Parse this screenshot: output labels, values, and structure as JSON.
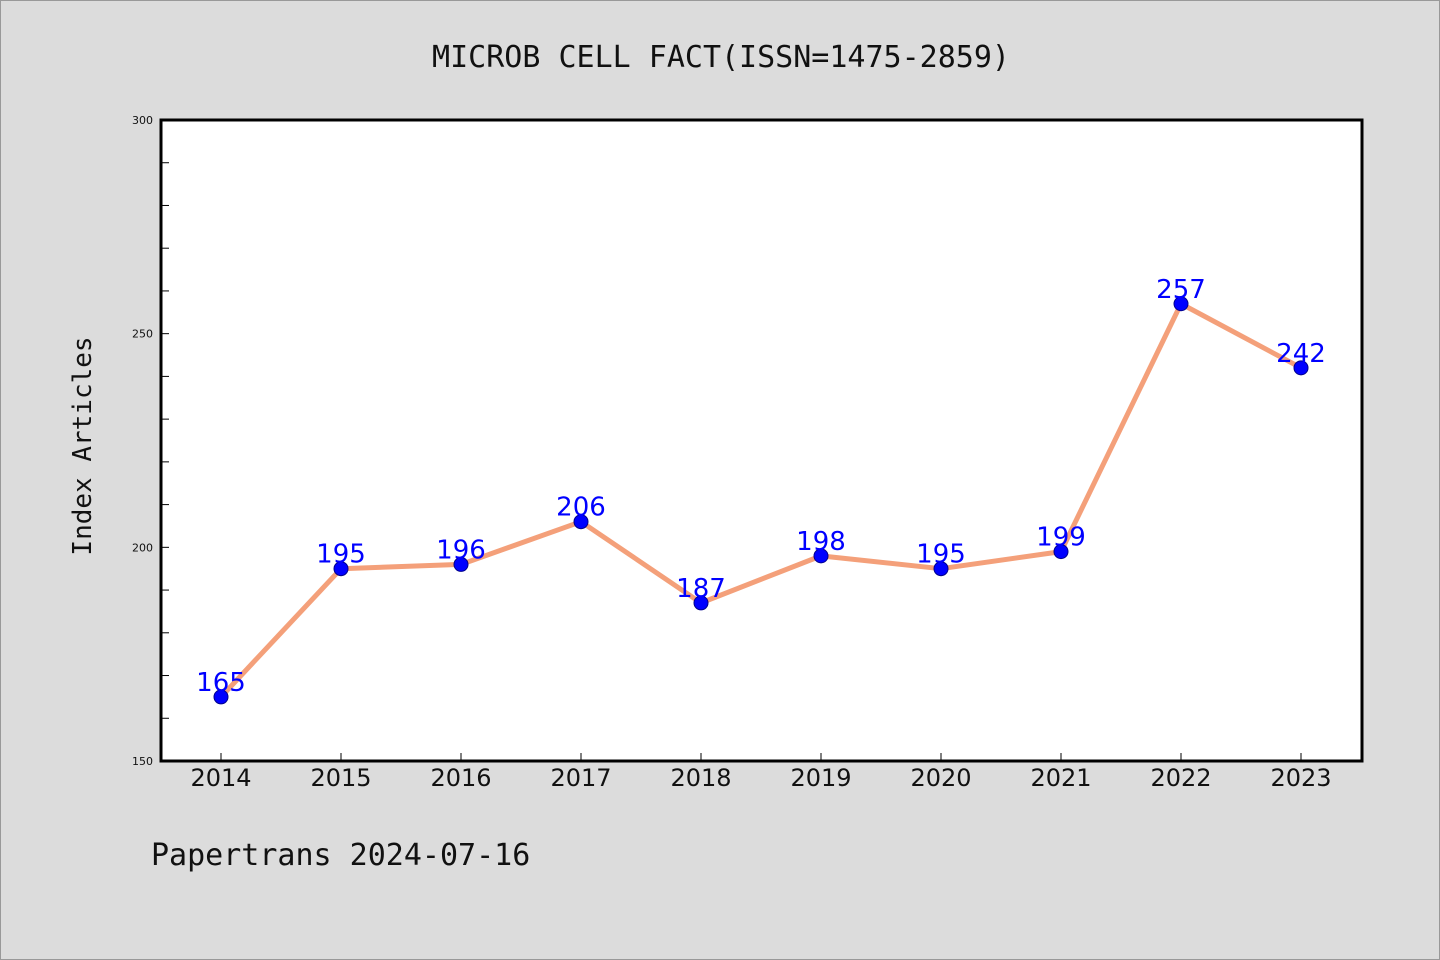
{
  "chart_data": {
    "type": "line",
    "title": "MICROB CELL FACT(ISSN=1475-2859)",
    "xlabel": "",
    "ylabel": "Index Articles",
    "categories": [
      "2014",
      "2015",
      "2016",
      "2017",
      "2018",
      "2019",
      "2020",
      "2021",
      "2022",
      "2023"
    ],
    "series": [
      {
        "values": [
          165,
          195,
          196,
          206,
          187,
          198,
          195,
          199,
          257,
          242
        ]
      }
    ],
    "data_labels": [
      "165",
      "195",
      "196",
      "206",
      "187",
      "198",
      "195",
      "199",
      "257",
      "242"
    ],
    "ylim": [
      150,
      300
    ],
    "y_ticks": [
      "150",
      "200",
      "250",
      "300"
    ],
    "grid": false,
    "legend": "none",
    "colors": {
      "line": "#f4a07a",
      "marker": "#0000ff",
      "marker_edge": "#00008b",
      "label": "#0000ff",
      "background": "#dcdcdc",
      "plot_background": "#ffffff"
    }
  },
  "footer": {
    "text": "Papertrans 2024-07-16"
  }
}
